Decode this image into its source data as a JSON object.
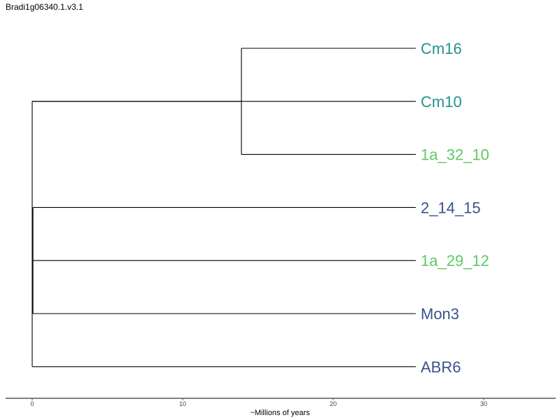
{
  "chart_data": {
    "type": "dendrogram",
    "title": "Bradi1g06340.1.v3.1",
    "xlabel": "~Millions of years",
    "xlim": [
      0,
      35
    ],
    "x_ticks": [
      0,
      10,
      20,
      30
    ],
    "grid": false,
    "leaves": [
      {
        "name": "Cm16",
        "color": "#23928c"
      },
      {
        "name": "Cm10",
        "color": "#23928c"
      },
      {
        "name": "1a_32_10",
        "color": "#5ec962"
      },
      {
        "name": "2_14_15",
        "color": "#3b528b"
      },
      {
        "name": "1a_29_12",
        "color": "#5ec962"
      },
      {
        "name": "Mon3",
        "color": "#3b528b"
      },
      {
        "name": "ABR6",
        "color": "#3b528b"
      }
    ],
    "tree": {
      "height": 0,
      "children": [
        {
          "height": 0,
          "children": [
            {
              "height": 13.9,
              "children": [
                {
                  "leaf": "Cm16"
                },
                {
                  "leaf": "1a_32_10"
                }
              ]
            },
            {
              "leaf": "Cm10"
            }
          ]
        },
        {
          "height": 0.05,
          "children": [
            {
              "leaf": "2_14_15"
            },
            {
              "leaf": "1a_29_12"
            },
            {
              "leaf": "Mon3"
            }
          ]
        },
        {
          "leaf": "ABR6"
        }
      ]
    }
  }
}
